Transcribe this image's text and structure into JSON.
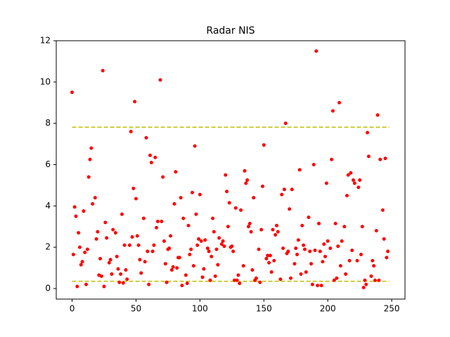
{
  "chart_data": {
    "type": "scatter",
    "title": "Radar NIS",
    "xlim": [
      -12.4,
      260.4
    ],
    "ylim": [
      -0.51,
      12.0
    ],
    "xticks": [
      0,
      50,
      100,
      150,
      200,
      250
    ],
    "yticks": [
      0,
      2,
      4,
      6,
      8,
      10,
      12
    ],
    "series": [
      {
        "color": "#ff0000",
        "x": [
          0,
          1,
          2,
          3,
          4,
          5,
          6,
          7,
          8,
          9,
          10,
          11,
          12,
          13,
          14,
          15,
          16,
          18,
          19,
          20,
          21,
          22,
          23,
          24,
          25,
          26,
          27,
          29,
          30,
          31,
          32,
          34,
          35,
          36,
          37,
          38,
          39,
          40,
          41,
          42,
          43,
          45,
          46,
          47,
          48,
          49,
          50,
          51,
          52,
          53,
          54,
          56,
          57,
          58,
          59,
          60,
          61,
          62,
          63,
          64,
          65,
          66,
          67,
          69,
          70,
          71,
          72,
          73,
          74,
          75,
          76,
          77,
          78,
          79,
          80,
          81,
          82,
          83,
          84,
          85,
          86,
          87,
          89,
          90,
          91,
          92,
          93,
          94,
          95,
          96,
          97,
          98,
          99,
          100,
          101,
          102,
          103,
          104,
          106,
          107,
          108,
          109,
          110,
          111,
          112,
          113,
          114,
          115,
          117,
          118,
          119,
          120,
          121,
          122,
          123,
          124,
          125,
          126,
          127,
          128,
          129,
          130,
          131,
          132,
          134,
          135,
          136,
          137,
          138,
          139,
          140,
          141,
          142,
          143,
          144,
          146,
          147,
          148,
          149,
          150,
          152,
          153,
          154,
          155,
          156,
          157,
          158,
          159,
          160,
          161,
          163,
          164,
          165,
          166,
          167,
          168,
          169,
          170,
          171,
          172,
          174,
          175,
          176,
          177,
          178,
          179,
          180,
          181,
          182,
          183,
          185,
          186,
          187,
          188,
          189,
          190,
          191,
          192,
          193,
          194,
          195,
          196,
          197,
          198,
          199,
          200,
          202,
          203,
          204,
          205,
          206,
          207,
          208,
          209,
          210,
          211,
          213,
          214,
          215,
          216,
          217,
          218,
          219,
          220,
          221,
          223,
          224,
          225,
          226,
          227,
          228,
          229,
          230,
          231,
          232,
          234,
          235,
          236,
          237,
          238,
          239,
          240,
          241,
          243,
          244,
          245,
          246,
          247
        ],
        "values": [
          9.5,
          1.65,
          3.95,
          3.5,
          0.1,
          2.7,
          2.0,
          1.15,
          1.3,
          3.75,
          1.75,
          0.2,
          1.9,
          5.4,
          6.25,
          6.8,
          4.1,
          4.4,
          2.4,
          2.75,
          0.65,
          1.45,
          0.6,
          10.55,
          0.1,
          3.2,
          2.45,
          1.25,
          1.4,
          0.7,
          2.85,
          2.7,
          1.55,
          0.95,
          0.3,
          0.7,
          3.6,
          0.27,
          2.1,
          0.9,
          0.45,
          2.1,
          7.6,
          2.5,
          4.85,
          9.05,
          4.35,
          2.55,
          2.1,
          1.4,
          0.75,
          3.4,
          1.3,
          7.3,
          1.8,
          0.2,
          6.45,
          6.1,
          1.8,
          2.1,
          6.35,
          2.95,
          3.25,
          10.1,
          3.25,
          5.4,
          2.3,
          1.2,
          0.3,
          1.9,
          1.95,
          2.55,
          0.9,
          1.05,
          4.1,
          5.65,
          1.0,
          1.5,
          1.5,
          4.4,
          0.15,
          3.4,
          0.65,
          0.25,
          3.05,
          1.65,
          1.9,
          4.65,
          1.1,
          6.9,
          3.6,
          2.1,
          2.4,
          4.55,
          2.3,
          0.55,
          0.95,
          2.35,
          1.95,
          1.8,
          0.4,
          1.55,
          3.4,
          2.75,
          0.6,
          1.9,
          1.15,
          2.45,
          2.15,
          2.3,
          2.05,
          5.5,
          4.7,
          3.0,
          4.15,
          2.0,
          2.05,
          1.8,
          0.4,
          3.9,
          0.4,
          0.65,
          0.25,
          3.8,
          1.1,
          5.7,
          5.1,
          5.25,
          3.0,
          3.15,
          2.75,
          0.9,
          4.4,
          0.4,
          0.5,
          1.9,
          0.3,
          2.85,
          4.95,
          6.95,
          1.45,
          1.6,
          1.25,
          1.6,
          0.8,
          2.85,
          1.35,
          2.6,
          3.05,
          2.75,
          0.45,
          4.55,
          1.95,
          4.8,
          8.0,
          1.7,
          1.8,
          3.85,
          0.5,
          4.8,
          1.2,
          1.95,
          1.65,
          2.35,
          5.75,
          0.7,
          3.05,
          2.1,
          1.9,
          0.8,
          3.45,
          1.8,
          1.2,
          0.2,
          6.0,
          1.85,
          11.5,
          0.15,
          3.15,
          1.8,
          0.15,
          1.3,
          2.15,
          1.55,
          5.1,
          2.3,
          1.95,
          6.25,
          8.6,
          0.4,
          3.15,
          0.5,
          2.05,
          9.0,
          1.1,
          2.3,
          3.0,
          0.7,
          4.5,
          5.5,
          1.35,
          5.6,
          1.85,
          5.25,
          5.1,
          1.35,
          4.9,
          5.25,
          1.65,
          3.0,
          0.05,
          0.4,
          0.2,
          7.55,
          6.4,
          0.6,
          1.35,
          1.1,
          0.4,
          2.8,
          8.4,
          0.4,
          6.25,
          3.8,
          2.4,
          6.3,
          1.5,
          1.8
        ]
      }
    ],
    "hlines": [
      {
        "y": 7.815,
        "x": [
          0,
          248
        ],
        "color": "#bfbf00",
        "style": "dashed"
      },
      {
        "y": 0.352,
        "x": [
          0,
          248
        ],
        "color": "#bfbf00",
        "style": "dashed"
      }
    ]
  }
}
